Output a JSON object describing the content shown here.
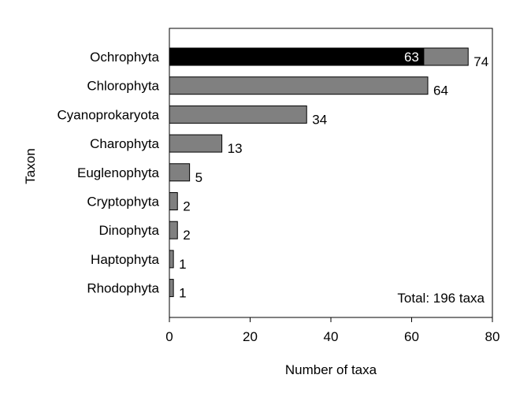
{
  "chart_data": {
    "type": "bar",
    "orientation": "horizontal",
    "categories": [
      "Ochrophyta",
      "Chlorophyta",
      "Cyanoprokaryota",
      "Charophyta",
      "Euglenophyta",
      "Cryptophyta",
      "Dinophyta",
      "Haptophyta",
      "Rhodophyta"
    ],
    "values": [
      74,
      64,
      34,
      13,
      5,
      2,
      2,
      1,
      1
    ],
    "highlight": {
      "category": "Ochrophyta",
      "value": 63,
      "label": "63"
    },
    "value_labels": [
      "74",
      "64",
      "34",
      "13",
      "5",
      "2",
      "2",
      "1",
      "1"
    ],
    "xlabel": "Number of taxa",
    "ylabel": "Taxon",
    "xlim": [
      0,
      80
    ],
    "xticks": [
      0,
      20,
      40,
      60,
      80
    ],
    "annotation": "Total: 196 taxa",
    "grid": false,
    "colors": {
      "bar": "#808080",
      "highlight": "#000000",
      "outline": "#000000",
      "inner_text": "#ffffff"
    }
  }
}
